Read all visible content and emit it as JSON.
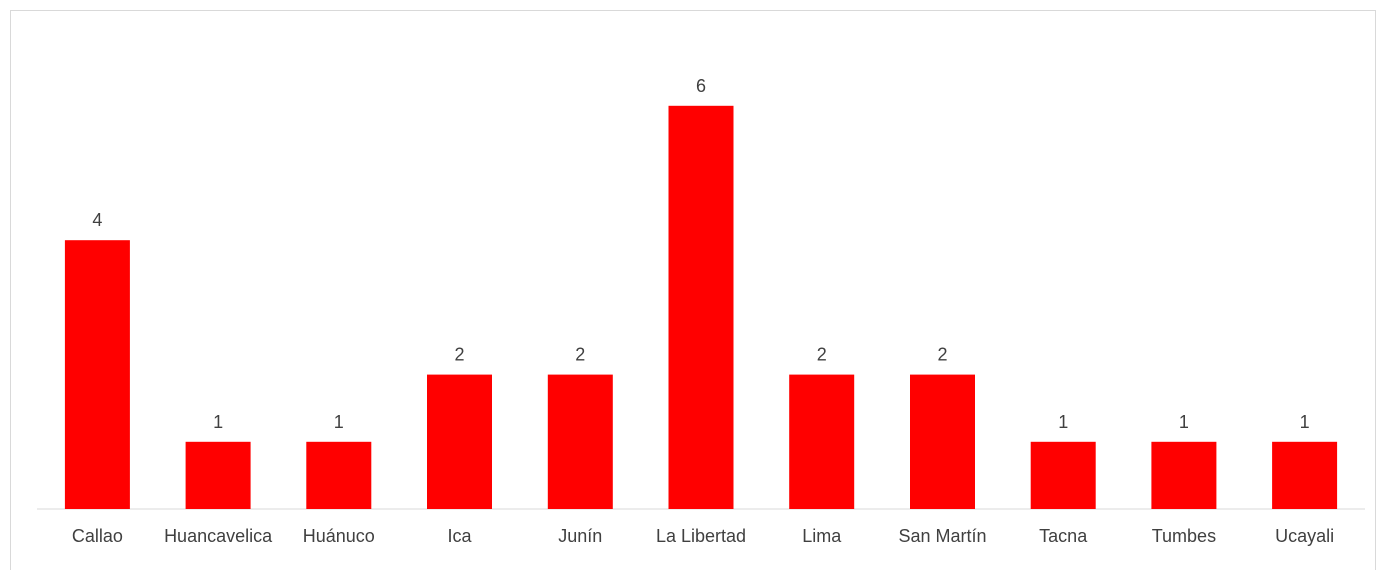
{
  "chart_data": {
    "type": "bar",
    "categories": [
      "Callao",
      "Huancavelica",
      "Huánuco",
      "Ica",
      "Junín",
      "La Libertad",
      "Lima",
      "San Martín",
      "Tacna",
      "Tumbes",
      "Ucayali"
    ],
    "values": [
      4,
      1,
      1,
      2,
      2,
      6,
      2,
      2,
      1,
      1,
      1
    ],
    "data_labels": [
      "4",
      "1",
      "1",
      "2",
      "2",
      "6",
      "2",
      "2",
      "1",
      "1",
      "1"
    ],
    "title": "",
    "xlabel": "",
    "ylabel": "",
    "ylim": [
      0,
      6.5
    ],
    "grid": false,
    "legend": "none",
    "bar_color": "#ff0000",
    "axis_color": "#d9d9d9",
    "text_color": "#404040"
  }
}
